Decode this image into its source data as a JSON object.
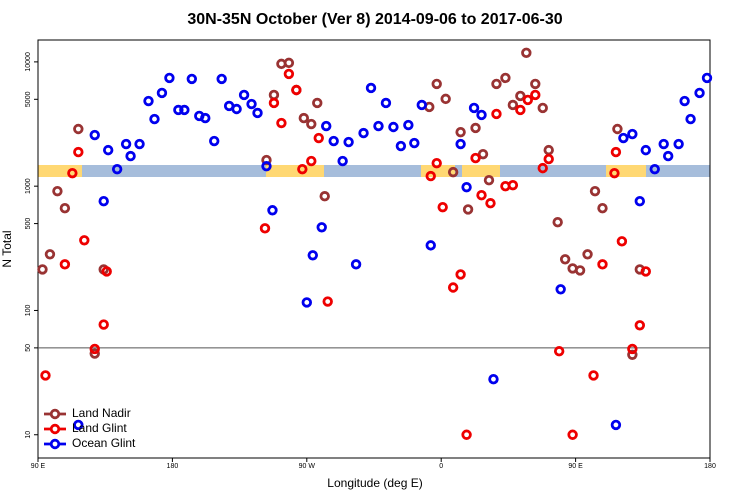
{
  "chart_data": {
    "type": "scatter",
    "title": "30N-35N October (Ver 8)   2014-09-06 to 2017-06-30",
    "x_label": "Longitude (deg E)",
    "y_label": "N Total",
    "log_y": true,
    "legend": "bottom-left",
    "reference_line": 50,
    "xlim": [
      90,
      540
    ],
    "ylim": [
      6.5,
      15000
    ],
    "xticks": [
      {
        "value": 90,
        "label": "90 E"
      },
      {
        "value": 180,
        "label": "180"
      },
      {
        "value": 270,
        "label": "90 W"
      },
      {
        "value": 360,
        "label": "0"
      },
      {
        "value": 450,
        "label": "90 E"
      },
      {
        "value": 540,
        "label": "180"
      }
    ],
    "yticks": [
      10,
      50,
      100,
      500,
      1000,
      5000,
      10000
    ],
    "series": [
      {
        "name": "Land Nadir",
        "color": "#993333",
        "x": [
          93,
          98,
          103,
          108,
          117,
          128,
          134,
          243,
          248,
          253,
          258,
          263,
          268,
          273,
          277,
          282,
          352,
          357,
          363,
          368,
          373,
          378,
          383,
          388,
          392,
          397,
          403,
          408,
          413,
          417,
          423,
          428,
          432,
          438,
          443,
          448,
          453,
          458,
          463,
          468,
          478,
          488,
          493
        ],
        "values": [
          214,
          283,
          912,
          665,
          2884,
          45,
          214,
          1622,
          5420,
          9640,
          9820,
          5940,
          3530,
          3162,
          4670,
          830,
          4340,
          6650,
          5040,
          1297,
          2720,
          650,
          2940,
          1810,
          1117,
          6650,
          7430,
          4500,
          5320,
          11830,
          6650,
          4260,
          1950,
          513,
          258,
          218,
          210,
          283,
          912,
          665,
          2884,
          44,
          214
        ]
      },
      {
        "name": "Land Glint",
        "color": "#ee0000",
        "x": [
          95,
          108,
          113,
          117,
          121,
          128,
          134,
          136,
          242,
          248,
          253,
          258,
          263,
          267,
          273,
          278,
          284,
          353,
          357,
          361,
          368,
          373,
          377,
          383,
          387,
          393,
          397,
          403,
          408,
          413,
          418,
          423,
          428,
          432,
          439,
          448,
          462,
          468,
          476,
          477,
          481,
          488,
          493,
          497
        ],
        "values": [
          30,
          235,
          1273,
          1880,
          367,
          49,
          77,
          206,
          458,
          4670,
          3221,
          8000,
          5940,
          1371,
          1592,
          2440,
          118,
          1205,
          1531,
          678,
          153,
          195,
          10,
          1683,
          846,
          729,
          3811,
          1000,
          1019,
          4103,
          4943,
          5420,
          1397,
          1652,
          47,
          10,
          30,
          235,
          1273,
          1880,
          360,
          49,
          76,
          206
        ]
      },
      {
        "name": "Ocean Glint",
        "color": "#0000ee",
        "x": [
          117,
          128,
          134,
          137,
          143,
          149,
          152,
          158,
          164,
          168,
          173,
          178,
          184,
          188,
          193,
          198,
          202,
          208,
          213,
          218,
          223,
          228,
          233,
          237,
          243,
          247,
          270,
          274,
          280,
          283,
          288,
          294,
          298,
          303,
          308,
          313,
          318,
          323,
          328,
          333,
          338,
          342,
          347,
          353,
          373,
          377,
          382,
          387,
          395,
          440,
          477,
          482,
          488,
          493,
          497,
          503,
          509,
          512,
          519,
          523,
          527,
          533,
          538
        ],
        "values": [
          12,
          2578,
          757,
          1950,
          1371,
          2183,
          1746,
          2183,
          4842,
          3467,
          5623,
          7430,
          4103,
          4103,
          7295,
          3673,
          3530,
          2307,
          7295,
          4418,
          4178,
          5420,
          4581,
          3881,
          1449,
          640,
          116,
          278,
          467,
          3048,
          2307,
          1592,
          2265,
          235,
          2673,
          6166,
          3048,
          4670,
          2993,
          2103,
          3104,
          2223,
          4500,
          334,
          2183,
          982,
          4260,
          3741,
          28,
          148,
          12,
          2440,
          2626,
          757,
          1950,
          1371,
          2183,
          1746,
          2183,
          4842,
          3467,
          5623,
          7430
        ]
      }
    ]
  }
}
